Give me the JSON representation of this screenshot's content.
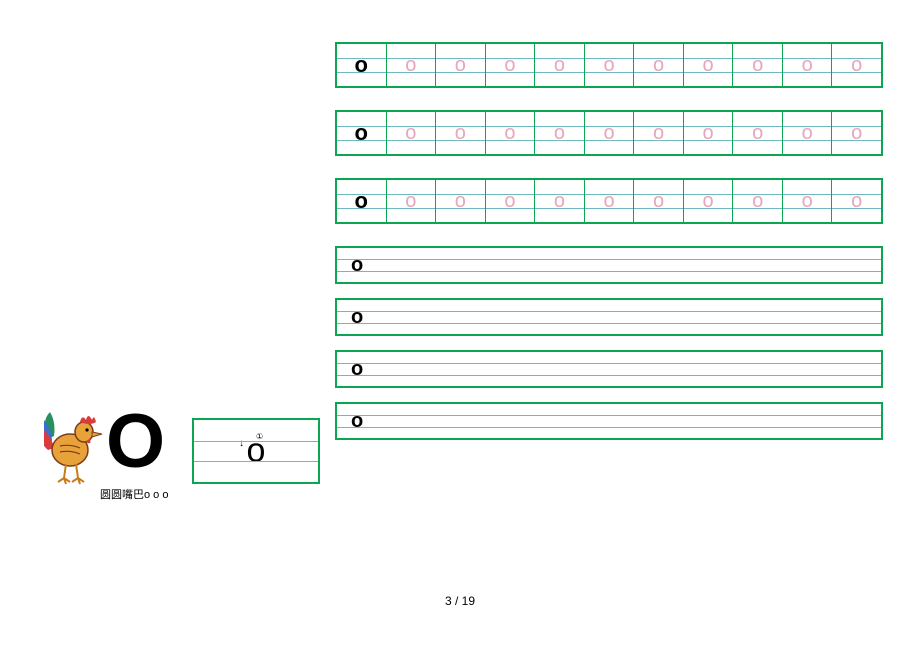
{
  "letter": "o",
  "big_letter": "O",
  "caption": "圆圆嘴巴o o o",
  "colors": {
    "border": "#0aa652",
    "guideline": "#6fb9c3",
    "trace": "#e9a4c0",
    "page_bg": "#ffffff"
  },
  "traced_rows": [
    {
      "solid": "o",
      "traces": [
        "o",
        "o",
        "o",
        "o",
        "o",
        "o",
        "o",
        "o",
        "o",
        "o"
      ]
    },
    {
      "solid": "o",
      "traces": [
        "o",
        "o",
        "o",
        "o",
        "o",
        "o",
        "o",
        "o",
        "o",
        "o"
      ]
    },
    {
      "solid": "o",
      "traces": [
        "o",
        "o",
        "o",
        "o",
        "o",
        "o",
        "o",
        "o",
        "o",
        "o"
      ]
    }
  ],
  "plain_rows": [
    {
      "solid": "o"
    },
    {
      "solid": "o"
    },
    {
      "solid": "o"
    },
    {
      "solid": "o"
    }
  ],
  "guidelines": {
    "traced_row": [
      0.333,
      0.666
    ],
    "plain_row": [
      0.333,
      0.666
    ],
    "demo_box": [
      0.333,
      0.666
    ]
  },
  "rooster": {
    "body": "#e8a23a",
    "comb": "#d93b3b",
    "tail_colors": [
      "#2a8f5f",
      "#3a6fd0",
      "#d93b3b"
    ],
    "beak": "#e8a23a",
    "legs": "#c77d1e",
    "eye": "#000000",
    "outline": "#7a3b1a"
  },
  "demo": {
    "letter": "o",
    "stroke_num": "①",
    "arrow": "↓"
  },
  "page": {
    "current": 3,
    "total": 19,
    "sep": " / "
  }
}
